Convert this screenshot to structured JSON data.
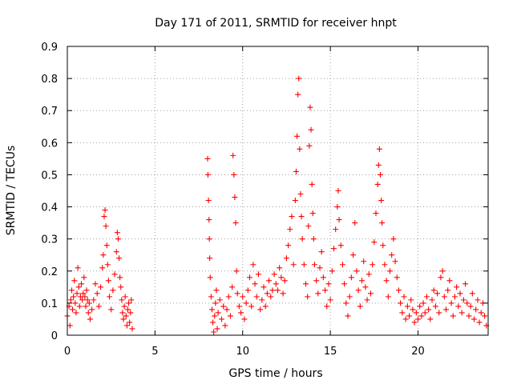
{
  "chart_data": {
    "type": "scatter",
    "title": "Day 171 of 2011, SRMTID for receiver hnpt",
    "xlabel": "GPS time / hours",
    "ylabel": "SRMTID / TECUs",
    "xlim": [
      0,
      24
    ],
    "ylim": [
      0,
      0.9
    ],
    "xticks": [
      0,
      5,
      10,
      15,
      20
    ],
    "yticks": [
      0,
      0.1,
      0.2,
      0.3,
      0.4,
      0.5,
      0.6,
      0.7,
      0.8,
      0.9
    ],
    "ytick_labels": [
      "0",
      "0.1",
      "0.2",
      "0.3",
      "0.4",
      "0.5",
      "0.6",
      "0.7",
      "0.8",
      "0.9"
    ],
    "grid": true,
    "marker": "+",
    "marker_color": "#ff0000",
    "series": [
      {
        "name": "SRMTID",
        "points": [
          [
            0.0,
            0.06
          ],
          [
            0.1,
            0.09
          ],
          [
            0.15,
            0.03
          ],
          [
            0.2,
            0.11
          ],
          [
            0.25,
            0.14
          ],
          [
            0.3,
            0.08
          ],
          [
            0.35,
            0.12
          ],
          [
            0.4,
            0.17
          ],
          [
            0.45,
            0.1
          ],
          [
            0.5,
            0.07
          ],
          [
            0.55,
            0.13
          ],
          [
            0.6,
            0.21
          ],
          [
            0.65,
            0.15
          ],
          [
            0.7,
            0.09
          ],
          [
            0.75,
            0.12
          ],
          [
            0.8,
            0.16
          ],
          [
            0.85,
            0.11
          ],
          [
            0.9,
            0.13
          ],
          [
            0.95,
            0.18
          ],
          [
            1.0,
            0.12
          ],
          [
            1.05,
            0.09
          ],
          [
            1.1,
            0.14
          ],
          [
            1.15,
            0.11
          ],
          [
            1.2,
            0.07
          ],
          [
            1.25,
            0.1
          ],
          [
            1.3,
            0.05
          ],
          [
            1.4,
            0.08
          ],
          [
            1.5,
            0.11
          ],
          [
            1.6,
            0.16
          ],
          [
            1.7,
            0.13
          ],
          [
            1.8,
            0.09
          ],
          [
            1.9,
            0.15
          ],
          [
            2.0,
            0.21
          ],
          [
            2.05,
            0.25
          ],
          [
            2.1,
            0.37
          ],
          [
            2.15,
            0.39
          ],
          [
            2.2,
            0.34
          ],
          [
            2.25,
            0.28
          ],
          [
            2.3,
            0.22
          ],
          [
            2.35,
            0.17
          ],
          [
            2.4,
            0.12
          ],
          [
            2.5,
            0.08
          ],
          [
            2.6,
            0.14
          ],
          [
            2.7,
            0.19
          ],
          [
            2.8,
            0.26
          ],
          [
            2.85,
            0.32
          ],
          [
            2.9,
            0.3
          ],
          [
            2.95,
            0.24
          ],
          [
            3.0,
            0.18
          ],
          [
            3.05,
            0.15
          ],
          [
            3.1,
            0.11
          ],
          [
            3.15,
            0.07
          ],
          [
            3.2,
            0.05
          ],
          [
            3.25,
            0.09
          ],
          [
            3.3,
            0.12
          ],
          [
            3.35,
            0.06
          ],
          [
            3.4,
            0.03
          ],
          [
            3.45,
            0.08
          ],
          [
            3.5,
            0.1
          ],
          [
            3.55,
            0.04
          ],
          [
            3.6,
            0.07
          ],
          [
            3.65,
            0.11
          ],
          [
            3.7,
            0.02
          ],
          [
            8.0,
            0.55
          ],
          [
            8.02,
            0.5
          ],
          [
            8.05,
            0.42
          ],
          [
            8.08,
            0.36
          ],
          [
            8.1,
            0.3
          ],
          [
            8.12,
            0.24
          ],
          [
            8.15,
            0.18
          ],
          [
            8.2,
            0.12
          ],
          [
            8.25,
            0.08
          ],
          [
            8.3,
            0.04
          ],
          [
            8.35,
            0.01
          ],
          [
            8.4,
            0.06
          ],
          [
            8.45,
            0.1
          ],
          [
            8.5,
            0.14
          ],
          [
            8.55,
            0.02
          ],
          [
            8.6,
            0.07
          ],
          [
            8.7,
            0.11
          ],
          [
            8.8,
            0.05
          ],
          [
            8.9,
            0.09
          ],
          [
            9.0,
            0.03
          ],
          [
            9.1,
            0.08
          ],
          [
            9.2,
            0.12
          ],
          [
            9.3,
            0.06
          ],
          [
            9.4,
            0.15
          ],
          [
            9.45,
            0.56
          ],
          [
            9.5,
            0.5
          ],
          [
            9.55,
            0.43
          ],
          [
            9.6,
            0.35
          ],
          [
            9.65,
            0.2
          ],
          [
            9.7,
            0.13
          ],
          [
            9.8,
            0.09
          ],
          [
            9.9,
            0.07
          ],
          [
            10.0,
            0.12
          ],
          [
            10.1,
            0.05
          ],
          [
            10.2,
            0.1
          ],
          [
            10.3,
            0.14
          ],
          [
            10.4,
            0.18
          ],
          [
            10.5,
            0.09
          ],
          [
            10.6,
            0.22
          ],
          [
            10.7,
            0.16
          ],
          [
            10.8,
            0.12
          ],
          [
            10.9,
            0.19
          ],
          [
            11.0,
            0.08
          ],
          [
            11.1,
            0.11
          ],
          [
            11.2,
            0.15
          ],
          [
            11.3,
            0.09
          ],
          [
            11.4,
            0.13
          ],
          [
            11.5,
            0.17
          ],
          [
            11.6,
            0.12
          ],
          [
            11.7,
            0.14
          ],
          [
            11.8,
            0.19
          ],
          [
            11.9,
            0.16
          ],
          [
            12.0,
            0.14
          ],
          [
            12.1,
            0.21
          ],
          [
            12.2,
            0.18
          ],
          [
            12.3,
            0.13
          ],
          [
            12.4,
            0.17
          ],
          [
            12.5,
            0.24
          ],
          [
            12.6,
            0.28
          ],
          [
            12.7,
            0.33
          ],
          [
            12.8,
            0.37
          ],
          [
            12.9,
            0.22
          ],
          [
            13.0,
            0.42
          ],
          [
            13.05,
            0.51
          ],
          [
            13.1,
            0.62
          ],
          [
            13.15,
            0.75
          ],
          [
            13.2,
            0.8
          ],
          [
            13.25,
            0.58
          ],
          [
            13.3,
            0.44
          ],
          [
            13.35,
            0.37
          ],
          [
            13.4,
            0.3
          ],
          [
            13.5,
            0.22
          ],
          [
            13.6,
            0.16
          ],
          [
            13.7,
            0.12
          ],
          [
            13.75,
            0.34
          ],
          [
            13.8,
            0.59
          ],
          [
            13.85,
            0.71
          ],
          [
            13.9,
            0.64
          ],
          [
            13.95,
            0.47
          ],
          [
            14.0,
            0.38
          ],
          [
            14.05,
            0.3
          ],
          [
            14.1,
            0.22
          ],
          [
            14.2,
            0.17
          ],
          [
            14.3,
            0.13
          ],
          [
            14.4,
            0.21
          ],
          [
            14.5,
            0.26
          ],
          [
            14.6,
            0.18
          ],
          [
            14.7,
            0.14
          ],
          [
            14.8,
            0.09
          ],
          [
            14.9,
            0.16
          ],
          [
            15.0,
            0.11
          ],
          [
            15.1,
            0.2
          ],
          [
            15.2,
            0.27
          ],
          [
            15.3,
            0.33
          ],
          [
            15.4,
            0.4
          ],
          [
            15.45,
            0.45
          ],
          [
            15.5,
            0.36
          ],
          [
            15.6,
            0.28
          ],
          [
            15.7,
            0.22
          ],
          [
            15.8,
            0.16
          ],
          [
            15.9,
            0.1
          ],
          [
            16.0,
            0.06
          ],
          [
            16.1,
            0.12
          ],
          [
            16.2,
            0.18
          ],
          [
            16.3,
            0.25
          ],
          [
            16.4,
            0.35
          ],
          [
            16.5,
            0.2
          ],
          [
            16.6,
            0.14
          ],
          [
            16.7,
            0.09
          ],
          [
            16.8,
            0.17
          ],
          [
            16.9,
            0.23
          ],
          [
            17.0,
            0.15
          ],
          [
            17.1,
            0.11
          ],
          [
            17.2,
            0.19
          ],
          [
            17.3,
            0.13
          ],
          [
            17.4,
            0.22
          ],
          [
            17.5,
            0.29
          ],
          [
            17.6,
            0.38
          ],
          [
            17.7,
            0.47
          ],
          [
            17.75,
            0.53
          ],
          [
            17.8,
            0.58
          ],
          [
            17.85,
            0.5
          ],
          [
            17.9,
            0.42
          ],
          [
            17.95,
            0.35
          ],
          [
            18.0,
            0.28
          ],
          [
            18.1,
            0.22
          ],
          [
            18.2,
            0.17
          ],
          [
            18.3,
            0.12
          ],
          [
            18.4,
            0.2
          ],
          [
            18.5,
            0.25
          ],
          [
            18.6,
            0.3
          ],
          [
            18.7,
            0.23
          ],
          [
            18.8,
            0.18
          ],
          [
            18.9,
            0.14
          ],
          [
            19.0,
            0.1
          ],
          [
            19.1,
            0.07
          ],
          [
            19.2,
            0.12
          ],
          [
            19.3,
            0.05
          ],
          [
            19.4,
            0.09
          ],
          [
            19.5,
            0.06
          ],
          [
            19.6,
            0.11
          ],
          [
            19.7,
            0.08
          ],
          [
            19.8,
            0.04
          ],
          [
            19.9,
            0.07
          ],
          [
            20.0,
            0.05
          ],
          [
            20.1,
            0.09
          ],
          [
            20.2,
            0.06
          ],
          [
            20.3,
            0.1
          ],
          [
            20.4,
            0.07
          ],
          [
            20.5,
            0.12
          ],
          [
            20.6,
            0.08
          ],
          [
            20.7,
            0.05
          ],
          [
            20.8,
            0.11
          ],
          [
            20.9,
            0.14
          ],
          [
            21.0,
            0.09
          ],
          [
            21.1,
            0.13
          ],
          [
            21.2,
            0.07
          ],
          [
            21.3,
            0.18
          ],
          [
            21.4,
            0.2
          ],
          [
            21.5,
            0.12
          ],
          [
            21.6,
            0.08
          ],
          [
            21.7,
            0.14
          ],
          [
            21.8,
            0.17
          ],
          [
            21.9,
            0.1
          ],
          [
            22.0,
            0.06
          ],
          [
            22.1,
            0.12
          ],
          [
            22.2,
            0.15
          ],
          [
            22.3,
            0.09
          ],
          [
            22.4,
            0.13
          ],
          [
            22.5,
            0.07
          ],
          [
            22.6,
            0.11
          ],
          [
            22.7,
            0.16
          ],
          [
            22.8,
            0.1
          ],
          [
            22.9,
            0.06
          ],
          [
            23.0,
            0.09
          ],
          [
            23.1,
            0.13
          ],
          [
            23.2,
            0.05
          ],
          [
            23.3,
            0.08
          ],
          [
            23.4,
            0.11
          ],
          [
            23.5,
            0.04
          ],
          [
            23.6,
            0.07
          ],
          [
            23.7,
            0.1
          ],
          [
            23.8,
            0.06
          ],
          [
            23.9,
            0.03
          ]
        ]
      }
    ]
  }
}
